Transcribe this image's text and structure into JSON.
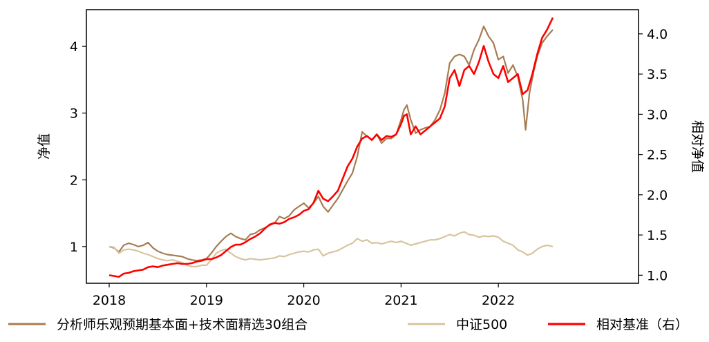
{
  "chart_data": {
    "type": "line",
    "title": "",
    "xlabel": "",
    "ylabel_left": "净值",
    "ylabel_right": "相对净值",
    "x_range": [
      2018.0,
      2022.56
    ],
    "x_ticks": [
      "2018",
      "2019",
      "2020",
      "2021",
      "2022"
    ],
    "x_tick_values": [
      2018,
      2019,
      2020,
      2021,
      2022
    ],
    "ylim_left": [
      0.45,
      4.55
    ],
    "yticks_left": [
      "1",
      "2",
      "3",
      "4"
    ],
    "ytick_values_left": [
      1,
      2,
      3,
      4
    ],
    "ylim_right": [
      0.9,
      4.3
    ],
    "yticks_right": [
      "1.0",
      "1.5",
      "2.0",
      "2.5",
      "3.0",
      "3.5",
      "4.0"
    ],
    "ytick_values_right": [
      1.0,
      1.5,
      2.0,
      2.5,
      3.0,
      3.5,
      4.0
    ],
    "grid": false,
    "legend_position": "bottom",
    "series": [
      {
        "name": "分析师乐观预期基本面+技术面精选30组合",
        "axis": "left",
        "color": "#A67C52",
        "x": [
          2018.0,
          2018.05,
          2018.1,
          2018.15,
          2018.2,
          2018.25,
          2018.3,
          2018.35,
          2018.4,
          2018.45,
          2018.5,
          2018.55,
          2018.6,
          2018.65,
          2018.7,
          2018.75,
          2018.8,
          2018.85,
          2018.9,
          2018.95,
          2019.0,
          2019.05,
          2019.1,
          2019.15,
          2019.2,
          2019.25,
          2019.3,
          2019.35,
          2019.4,
          2019.45,
          2019.5,
          2019.55,
          2019.6,
          2019.65,
          2019.7,
          2019.75,
          2019.8,
          2019.85,
          2019.9,
          2019.95,
          2020.0,
          2020.05,
          2020.1,
          2020.15,
          2020.2,
          2020.25,
          2020.3,
          2020.35,
          2020.4,
          2020.45,
          2020.5,
          2020.55,
          2020.6,
          2020.65,
          2020.7,
          2020.75,
          2020.8,
          2020.85,
          2020.9,
          2020.95,
          2021.0,
          2021.03,
          2021.06,
          2021.1,
          2021.15,
          2021.2,
          2021.25,
          2021.3,
          2021.35,
          2021.4,
          2021.45,
          2021.5,
          2021.55,
          2021.6,
          2021.65,
          2021.7,
          2021.75,
          2021.8,
          2021.85,
          2021.9,
          2021.95,
          2022.0,
          2022.05,
          2022.1,
          2022.15,
          2022.2,
          2022.25,
          2022.28,
          2022.32,
          2022.36,
          2022.4,
          2022.45,
          2022.5,
          2022.56
        ],
        "y": [
          1.0,
          0.98,
          0.92,
          1.02,
          1.05,
          1.03,
          1.0,
          1.02,
          1.06,
          0.98,
          0.93,
          0.9,
          0.88,
          0.87,
          0.86,
          0.85,
          0.82,
          0.8,
          0.79,
          0.8,
          0.82,
          0.9,
          1.0,
          1.08,
          1.15,
          1.2,
          1.15,
          1.12,
          1.1,
          1.18,
          1.2,
          1.25,
          1.28,
          1.32,
          1.35,
          1.45,
          1.42,
          1.46,
          1.55,
          1.6,
          1.65,
          1.58,
          1.65,
          1.75,
          1.6,
          1.52,
          1.62,
          1.72,
          1.85,
          1.98,
          2.1,
          2.35,
          2.72,
          2.65,
          2.6,
          2.68,
          2.55,
          2.62,
          2.62,
          2.68,
          2.9,
          3.05,
          3.12,
          2.9,
          2.7,
          2.75,
          2.78,
          2.8,
          2.9,
          3.05,
          3.3,
          3.75,
          3.85,
          3.88,
          3.85,
          3.72,
          3.95,
          4.1,
          4.3,
          4.15,
          4.05,
          3.8,
          3.85,
          3.6,
          3.72,
          3.55,
          3.2,
          2.75,
          3.3,
          3.6,
          3.85,
          4.05,
          4.15,
          4.25
        ]
      },
      {
        "name": "中证500",
        "axis": "left",
        "color": "#D7C49E",
        "x": [
          2018.0,
          2018.05,
          2018.1,
          2018.15,
          2018.2,
          2018.25,
          2018.3,
          2018.35,
          2018.4,
          2018.45,
          2018.5,
          2018.55,
          2018.6,
          2018.65,
          2018.7,
          2018.75,
          2018.8,
          2018.85,
          2018.9,
          2018.95,
          2019.0,
          2019.05,
          2019.1,
          2019.15,
          2019.2,
          2019.25,
          2019.3,
          2019.35,
          2019.4,
          2019.45,
          2019.5,
          2019.55,
          2019.6,
          2019.65,
          2019.7,
          2019.75,
          2019.8,
          2019.85,
          2019.9,
          2019.95,
          2020.0,
          2020.05,
          2020.1,
          2020.15,
          2020.2,
          2020.25,
          2020.3,
          2020.35,
          2020.4,
          2020.45,
          2020.5,
          2020.55,
          2020.6,
          2020.65,
          2020.7,
          2020.75,
          2020.8,
          2020.85,
          2020.9,
          2020.95,
          2021.0,
          2021.05,
          2021.1,
          2021.15,
          2021.2,
          2021.25,
          2021.3,
          2021.35,
          2021.4,
          2021.45,
          2021.5,
          2021.55,
          2021.6,
          2021.65,
          2021.7,
          2021.75,
          2021.8,
          2021.85,
          2021.9,
          2021.95,
          2022.0,
          2022.05,
          2022.1,
          2022.15,
          2022.2,
          2022.25,
          2022.3,
          2022.35,
          2022.4,
          2022.45,
          2022.5,
          2022.56
        ],
        "y": [
          1.0,
          0.99,
          0.9,
          0.95,
          0.96,
          0.95,
          0.93,
          0.9,
          0.88,
          0.85,
          0.82,
          0.8,
          0.79,
          0.8,
          0.78,
          0.76,
          0.72,
          0.7,
          0.7,
          0.72,
          0.72,
          0.8,
          0.9,
          0.94,
          0.96,
          0.9,
          0.85,
          0.82,
          0.8,
          0.82,
          0.81,
          0.8,
          0.81,
          0.82,
          0.83,
          0.86,
          0.85,
          0.88,
          0.9,
          0.92,
          0.93,
          0.92,
          0.95,
          0.96,
          0.86,
          0.9,
          0.92,
          0.94,
          0.98,
          1.02,
          1.05,
          1.12,
          1.08,
          1.1,
          1.05,
          1.06,
          1.04,
          1.06,
          1.08,
          1.06,
          1.08,
          1.05,
          1.02,
          1.04,
          1.06,
          1.08,
          1.1,
          1.1,
          1.12,
          1.15,
          1.18,
          1.16,
          1.2,
          1.22,
          1.18,
          1.17,
          1.14,
          1.16,
          1.15,
          1.16,
          1.14,
          1.08,
          1.05,
          1.02,
          0.95,
          0.92,
          0.87,
          0.9,
          0.96,
          1.0,
          1.02,
          1.0
        ]
      },
      {
        "name": "相对基准（右）",
        "axis": "right",
        "color": "#FF0000",
        "x": [
          2018.0,
          2018.05,
          2018.1,
          2018.15,
          2018.2,
          2018.25,
          2018.3,
          2018.35,
          2018.4,
          2018.45,
          2018.5,
          2018.55,
          2018.6,
          2018.65,
          2018.7,
          2018.75,
          2018.8,
          2018.85,
          2018.9,
          2018.95,
          2019.0,
          2019.05,
          2019.1,
          2019.15,
          2019.2,
          2019.25,
          2019.3,
          2019.35,
          2019.4,
          2019.45,
          2019.5,
          2019.55,
          2019.6,
          2019.65,
          2019.7,
          2019.75,
          2019.8,
          2019.85,
          2019.9,
          2019.95,
          2020.0,
          2020.05,
          2020.1,
          2020.15,
          2020.2,
          2020.25,
          2020.3,
          2020.35,
          2020.4,
          2020.45,
          2020.5,
          2020.55,
          2020.6,
          2020.65,
          2020.7,
          2020.75,
          2020.8,
          2020.85,
          2020.9,
          2020.95,
          2021.0,
          2021.03,
          2021.06,
          2021.1,
          2021.15,
          2021.2,
          2021.25,
          2021.3,
          2021.35,
          2021.4,
          2021.45,
          2021.5,
          2021.55,
          2021.6,
          2021.65,
          2021.7,
          2021.75,
          2021.8,
          2021.85,
          2021.9,
          2021.95,
          2022.0,
          2022.05,
          2022.1,
          2022.15,
          2022.2,
          2022.25,
          2022.3,
          2022.35,
          2022.4,
          2022.45,
          2022.5,
          2022.56
        ],
        "y": [
          1.0,
          0.99,
          0.98,
          1.02,
          1.03,
          1.05,
          1.06,
          1.07,
          1.1,
          1.11,
          1.1,
          1.12,
          1.13,
          1.14,
          1.15,
          1.14,
          1.14,
          1.15,
          1.17,
          1.18,
          1.2,
          1.2,
          1.22,
          1.25,
          1.3,
          1.35,
          1.38,
          1.38,
          1.41,
          1.45,
          1.48,
          1.52,
          1.58,
          1.63,
          1.65,
          1.64,
          1.66,
          1.7,
          1.72,
          1.75,
          1.8,
          1.82,
          1.9,
          2.05,
          1.95,
          1.92,
          1.98,
          2.05,
          2.2,
          2.35,
          2.45,
          2.6,
          2.7,
          2.73,
          2.68,
          2.75,
          2.68,
          2.73,
          2.72,
          2.75,
          2.88,
          2.98,
          3.0,
          2.75,
          2.85,
          2.75,
          2.8,
          2.85,
          2.9,
          2.95,
          3.1,
          3.45,
          3.55,
          3.35,
          3.55,
          3.6,
          3.5,
          3.65,
          3.85,
          3.65,
          3.5,
          3.45,
          3.6,
          3.4,
          3.45,
          3.5,
          3.25,
          3.3,
          3.5,
          3.75,
          3.95,
          4.05,
          4.2
        ]
      }
    ]
  }
}
